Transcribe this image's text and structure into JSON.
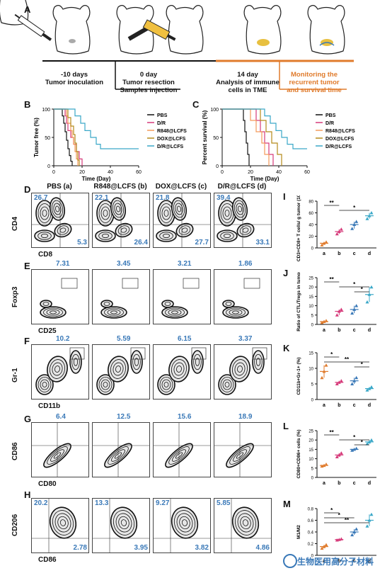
{
  "panels": {
    "A": "A",
    "B": "B",
    "C": "C",
    "D": "D",
    "E": "E",
    "F": "F",
    "G": "G",
    "H": "H",
    "I": "I",
    "J": "J",
    "K": "K",
    "L": "L",
    "M": "M"
  },
  "timeline": {
    "t1_line1": "-10 days",
    "t1_line2": "Tumor inoculation",
    "t2_line1": "0 day",
    "t2_line2": "Tumor resection",
    "t2_line3": "Samples injection",
    "t3_line1": "14 day",
    "t3_line2": "Analysis of immune",
    "t3_line3": "cells in TME",
    "t4_line1": "Monitoring the",
    "t4_line2": "recurrent tumor",
    "t4_line3": "and survival time"
  },
  "legend": [
    "PBS",
    "D/R",
    "R848@LCFS",
    "DOX@LCFS",
    "D/R@LCFS"
  ],
  "colors": {
    "PBS": "#111111",
    "D/R": "#d63a7a",
    "R848@LCFS": "#f39a5a",
    "DOX@LCFS": "#b58a1a",
    "D/R@LCFS": "#3aa8c8",
    "accent": "#e07b2c",
    "value_blue": "#3a79b8"
  },
  "chart_data": [
    {
      "id": "B",
      "type": "line",
      "ylabel": "Tumor free (%)",
      "xlabel": "Time (Day)",
      "xlim": [
        0,
        60
      ],
      "ylim": [
        0,
        100
      ],
      "xticks": [
        0,
        20,
        40,
        60
      ],
      "yticks": [
        0,
        50,
        100
      ],
      "series": [
        {
          "name": "PBS",
          "points": [
            [
              0,
              100
            ],
            [
              5,
              100
            ],
            [
              6,
              88
            ],
            [
              7,
              75
            ],
            [
              8,
              60
            ],
            [
              9,
              45
            ],
            [
              10,
              30
            ],
            [
              11,
              18
            ],
            [
              12,
              8
            ],
            [
              13,
              0
            ]
          ]
        },
        {
          "name": "D/R",
          "points": [
            [
              0,
              100
            ],
            [
              7,
              100
            ],
            [
              8,
              88
            ],
            [
              9,
              75
            ],
            [
              10,
              62
            ],
            [
              12,
              50
            ],
            [
              14,
              38
            ],
            [
              16,
              25
            ],
            [
              18,
              12
            ],
            [
              20,
              0
            ]
          ]
        },
        {
          "name": "R848@LCFS",
          "points": [
            [
              0,
              100
            ],
            [
              8,
              100
            ],
            [
              9,
              88
            ],
            [
              10,
              75
            ],
            [
              12,
              62
            ],
            [
              13,
              50
            ],
            [
              14,
              38
            ],
            [
              15,
              25
            ],
            [
              16,
              12
            ],
            [
              17,
              0
            ]
          ]
        },
        {
          "name": "DOX@LCFS",
          "points": [
            [
              0,
              100
            ],
            [
              9,
              100
            ],
            [
              10,
              85
            ],
            [
              12,
              70
            ],
            [
              14,
              55
            ],
            [
              15,
              40
            ],
            [
              16,
              25
            ],
            [
              17,
              10
            ],
            [
              18,
              0
            ]
          ]
        },
        {
          "name": "D/R@LCFS",
          "points": [
            [
              0,
              100
            ],
            [
              12,
              100
            ],
            [
              15,
              88
            ],
            [
              19,
              75
            ],
            [
              22,
              62
            ],
            [
              26,
              50
            ],
            [
              30,
              38
            ],
            [
              33,
              30
            ],
            [
              60,
              30
            ]
          ]
        }
      ]
    },
    {
      "id": "C",
      "type": "line",
      "ylabel": "Percent survival (%)",
      "xlabel": "Time (Day)",
      "xlim": [
        0,
        60
      ],
      "ylim": [
        0,
        100
      ],
      "xticks": [
        0,
        20,
        40,
        60
      ],
      "yticks": [
        0,
        50,
        100
      ],
      "series": [
        {
          "name": "PBS",
          "points": [
            [
              0,
              100
            ],
            [
              14,
              100
            ],
            [
              15,
              80
            ],
            [
              16,
              60
            ],
            [
              17,
              40
            ],
            [
              18,
              20
            ],
            [
              19,
              0
            ]
          ]
        },
        {
          "name": "D/R",
          "points": [
            [
              0,
              100
            ],
            [
              22,
              100
            ],
            [
              24,
              80
            ],
            [
              27,
              60
            ],
            [
              30,
              40
            ],
            [
              33,
              20
            ],
            [
              36,
              0
            ]
          ]
        },
        {
          "name": "R848@LCFS",
          "points": [
            [
              0,
              100
            ],
            [
              18,
              100
            ],
            [
              20,
              80
            ],
            [
              24,
              60
            ],
            [
              28,
              40
            ],
            [
              30,
              20
            ],
            [
              33,
              0
            ]
          ]
        },
        {
          "name": "DOX@LCFS",
          "points": [
            [
              0,
              100
            ],
            [
              24,
              100
            ],
            [
              27,
              80
            ],
            [
              31,
              60
            ],
            [
              35,
              40
            ],
            [
              39,
              20
            ],
            [
              42,
              0
            ]
          ]
        },
        {
          "name": "D/R@LCFS",
          "points": [
            [
              0,
              100
            ],
            [
              26,
              100
            ],
            [
              30,
              88
            ],
            [
              34,
              75
            ],
            [
              38,
              62
            ],
            [
              42,
              50
            ],
            [
              46,
              38
            ],
            [
              50,
              30
            ],
            [
              60,
              30
            ]
          ]
        }
      ]
    },
    {
      "id": "I",
      "type": "scatter",
      "ylabel": "CD3+CD8+ T cells/ g tumor (10^4)",
      "categories": [
        "a",
        "b",
        "c",
        "d"
      ],
      "ylim": [
        0,
        80
      ],
      "yticks": [
        0,
        20,
        40,
        60,
        80
      ],
      "means": [
        8,
        28,
        40,
        55
      ],
      "points": [
        [
          5,
          8,
          10
        ],
        [
          24,
          28,
          32
        ],
        [
          33,
          40,
          45
        ],
        [
          50,
          55,
          60
        ]
      ],
      "sig": [
        {
          "from": "a",
          "to": "b",
          "label": "**"
        },
        {
          "from": "b",
          "to": "d",
          "label": "*"
        }
      ]
    },
    {
      "id": "J",
      "type": "scatter",
      "ylabel": "Ratio of CTL/Tregs in tumor",
      "categories": [
        "a",
        "b",
        "c",
        "d"
      ],
      "ylim": [
        0,
        25
      ],
      "yticks": [
        0,
        5,
        10,
        15,
        20,
        25
      ],
      "means": [
        1.5,
        7,
        8,
        16
      ],
      "points": [
        [
          1,
          1.5,
          2
        ],
        [
          5,
          7,
          8
        ],
        [
          6,
          8,
          10
        ],
        [
          12,
          16,
          20
        ]
      ],
      "sig": [
        {
          "from": "a",
          "to": "b",
          "label": "**"
        },
        {
          "from": "b",
          "to": "d",
          "label": "*"
        },
        {
          "from": "c",
          "to": "d",
          "label": "*"
        }
      ]
    },
    {
      "id": "K",
      "type": "scatter",
      "ylabel": "CD11b+Gr-1+ (%)",
      "categories": [
        "a",
        "b",
        "c",
        "d"
      ],
      "ylim": [
        0,
        15
      ],
      "yticks": [
        0,
        5,
        10,
        15
      ],
      "means": [
        9,
        5.5,
        6,
        3.5
      ],
      "points": [
        [
          7,
          9,
          11
        ],
        [
          5,
          5.5,
          6
        ],
        [
          5,
          6,
          7
        ],
        [
          3,
          3.5,
          4
        ]
      ],
      "sig": [
        {
          "from": "a",
          "to": "b",
          "label": "*"
        },
        {
          "from": "a",
          "to": "d",
          "label": "**"
        },
        {
          "from": "c",
          "to": "d",
          "label": "*"
        }
      ]
    },
    {
      "id": "L",
      "type": "scatter",
      "ylabel": "CD80+CD86+ cells (%)",
      "categories": [
        "a",
        "b",
        "c",
        "d"
      ],
      "ylim": [
        0,
        25
      ],
      "yticks": [
        0,
        5,
        10,
        15,
        20,
        25
      ],
      "means": [
        6.4,
        12,
        15,
        19
      ],
      "points": [
        [
          6,
          6.4,
          7
        ],
        [
          11,
          12,
          13
        ],
        [
          14.5,
          15,
          15.5
        ],
        [
          18,
          19,
          20
        ]
      ],
      "sig": [
        {
          "from": "a",
          "to": "b",
          "label": "**"
        },
        {
          "from": "b",
          "to": "d",
          "label": "*"
        },
        {
          "from": "c",
          "to": "d",
          "label": "*"
        }
      ]
    },
    {
      "id": "M",
      "type": "scatter",
      "ylabel": "M1/M2",
      "categories": [
        "a",
        "b",
        "c",
        "d"
      ],
      "ylim": [
        0,
        0.8
      ],
      "yticks": [
        0,
        0.2,
        0.4,
        0.6,
        0.8
      ],
      "means": [
        0.15,
        0.27,
        0.4,
        0.6
      ],
      "points": [
        [
          0.12,
          0.15,
          0.18
        ],
        [
          0.26,
          0.27,
          0.28
        ],
        [
          0.35,
          0.4,
          0.45
        ],
        [
          0.5,
          0.6,
          0.7
        ]
      ],
      "sig": [
        {
          "from": "a",
          "to": "b",
          "label": "*"
        },
        {
          "from": "a",
          "to": "c",
          "label": "*"
        },
        {
          "from": "a",
          "to": "d",
          "label": "**"
        }
      ]
    }
  ],
  "flow": {
    "columns": [
      "PBS (a)",
      "R848@LCFS (b)",
      "DOX@LCFS (c)",
      "D/R@LCFS (d)"
    ],
    "rows": [
      {
        "id": "D",
        "ylabel": "CD4",
        "xlabel": "CD8",
        "tl": [
          "26.7",
          "22.1",
          "21.8",
          "39.4"
        ],
        "br": [
          "5.3",
          "26.4",
          "27.7",
          "33.1"
        ]
      },
      {
        "id": "E",
        "ylabel": "Foxp3",
        "xlabel": "CD25",
        "tr": [
          "7.31",
          "3.45",
          "3.21",
          "1.86"
        ]
      },
      {
        "id": "F",
        "ylabel": "Gr-1",
        "xlabel": "CD11b",
        "tr": [
          "10.2",
          "5.59",
          "6.15",
          "3.37"
        ]
      },
      {
        "id": "G",
        "ylabel": "CD86",
        "xlabel": "CD80",
        "tr": [
          "6.4",
          "12.5",
          "15.6",
          "18.9"
        ]
      },
      {
        "id": "H",
        "ylabel": "CD206",
        "xlabel": "CD86",
        "tl": [
          "20.2",
          "13.3",
          "9.27",
          "5.85"
        ],
        "br": [
          "2.78",
          "3.95",
          "3.82",
          "4.86"
        ]
      }
    ]
  },
  "watermark": "生物医用高分子材料"
}
